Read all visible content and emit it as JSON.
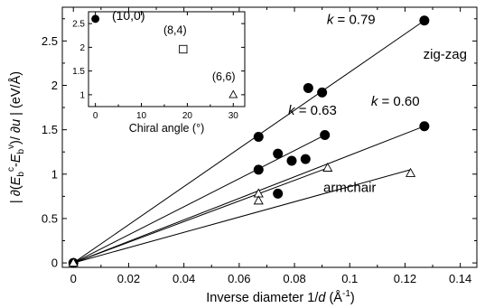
{
  "chart_data": [
    {
      "type": "scatter",
      "title": "",
      "xlabel": {
        "pre": "Inverse diameter 1/",
        "var": "d",
        "mid": " (Å",
        "sup": "-1",
        "post": ")"
      },
      "ylabel": {
        "parts": [
          {
            "t": "| ∂(",
            "s": "n"
          },
          {
            "t": "E",
            "s": "i"
          },
          {
            "t": "b",
            "s": "sub"
          },
          {
            "t": "c",
            "s": "sup"
          },
          {
            "t": "-",
            "s": "n"
          },
          {
            "t": "E",
            "s": "i"
          },
          {
            "t": "b",
            "s": "sub"
          },
          {
            "t": "v",
            "s": "sup"
          },
          {
            "t": ")/ ∂",
            "s": "n"
          },
          {
            "t": "u",
            "s": "i"
          },
          {
            "t": " | (eV/Å)",
            "s": "n"
          }
        ]
      },
      "xlim": [
        -0.004,
        0.146
      ],
      "ylim": [
        -0.05,
        2.88
      ],
      "xticks": [
        0,
        0.02,
        0.04,
        0.06,
        0.08,
        0.1,
        0.12,
        0.14
      ],
      "xtick_labels": [
        "0",
        "0.02",
        "0.04",
        "0.06",
        "0.08",
        "0.1",
        "0.12",
        "0.14"
      ],
      "yticks": [
        0,
        0.5,
        1,
        1.5,
        2,
        2.5
      ],
      "ytick_labels": [
        "0",
        "0.5",
        "1",
        "1.5",
        "2",
        "2.5"
      ],
      "series": [
        {
          "marker": "filled-circle",
          "x": [
            0,
            0.067,
            0.067,
            0.074,
            0.074,
            0.079,
            0.084,
            0.085,
            0.09,
            0.091,
            0.127,
            0.127
          ],
          "y": [
            0,
            1.42,
            1.05,
            1.23,
            0.78,
            1.15,
            1.17,
            1.97,
            1.92,
            1.44,
            2.73,
            1.54
          ]
        },
        {
          "marker": "open-triangle",
          "x": [
            0,
            0.067,
            0.067,
            0.092,
            0.122
          ],
          "y": [
            0,
            0.78,
            0.7,
            1.07,
            1.01
          ]
        }
      ],
      "fit_lines": [
        {
          "x": [
            0,
            0.127
          ],
          "y": [
            0,
            2.73
          ]
        },
        {
          "x": [
            0,
            0.091
          ],
          "y": [
            0,
            1.44
          ]
        },
        {
          "x": [
            0,
            0.127
          ],
          "y": [
            0,
            1.54
          ]
        },
        {
          "x": [
            0,
            0.092
          ],
          "y": [
            0,
            1.07
          ]
        },
        {
          "x": [
            0,
            0.122
          ],
          "y": [
            0,
            1.05
          ]
        }
      ],
      "annotations": [
        {
          "k": "k",
          "v": " = 0.79",
          "x": 0.1005,
          "y": 2.69
        },
        {
          "k": "k",
          "v": " = 0.63",
          "x": 0.0865,
          "y": 1.67
        },
        {
          "k": "k",
          "v": " = 0.60",
          "x": 0.1165,
          "y": 1.77
        }
      ],
      "region_labels": [
        {
          "text": "zig-zag",
          "x": 0.1345,
          "y": 2.3
        },
        {
          "text": "armchair",
          "x": 0.1,
          "y": 0.8
        }
      ]
    },
    {
      "type": "scatter",
      "title": "",
      "xlabel": "Chiral angle (°)",
      "ylabel": "",
      "xlim": [
        -1.5,
        32.5
      ],
      "ylim": [
        0.75,
        2.75
      ],
      "xticks": [
        0,
        10,
        20,
        30
      ],
      "xtick_labels": [
        "0",
        "10",
        "20",
        "30"
      ],
      "yticks": [
        1,
        1.5,
        2,
        2.5
      ],
      "ytick_labels": [
        "1",
        "1.5",
        "2",
        "2.5"
      ],
      "points": [
        {
          "x": 0,
          "y": 2.6,
          "marker": "filled-circle",
          "label": "(10,0)",
          "lx": 3.6,
          "ly": 2.58
        },
        {
          "x": 19.1,
          "y": 1.96,
          "marker": "open-square",
          "label": "(8,4)",
          "lx": 14.8,
          "ly": 2.28
        },
        {
          "x": 30,
          "y": 1.0,
          "marker": "open-triangle",
          "label": "(6,6)",
          "lx": 25.4,
          "ly": 1.3
        }
      ]
    }
  ]
}
